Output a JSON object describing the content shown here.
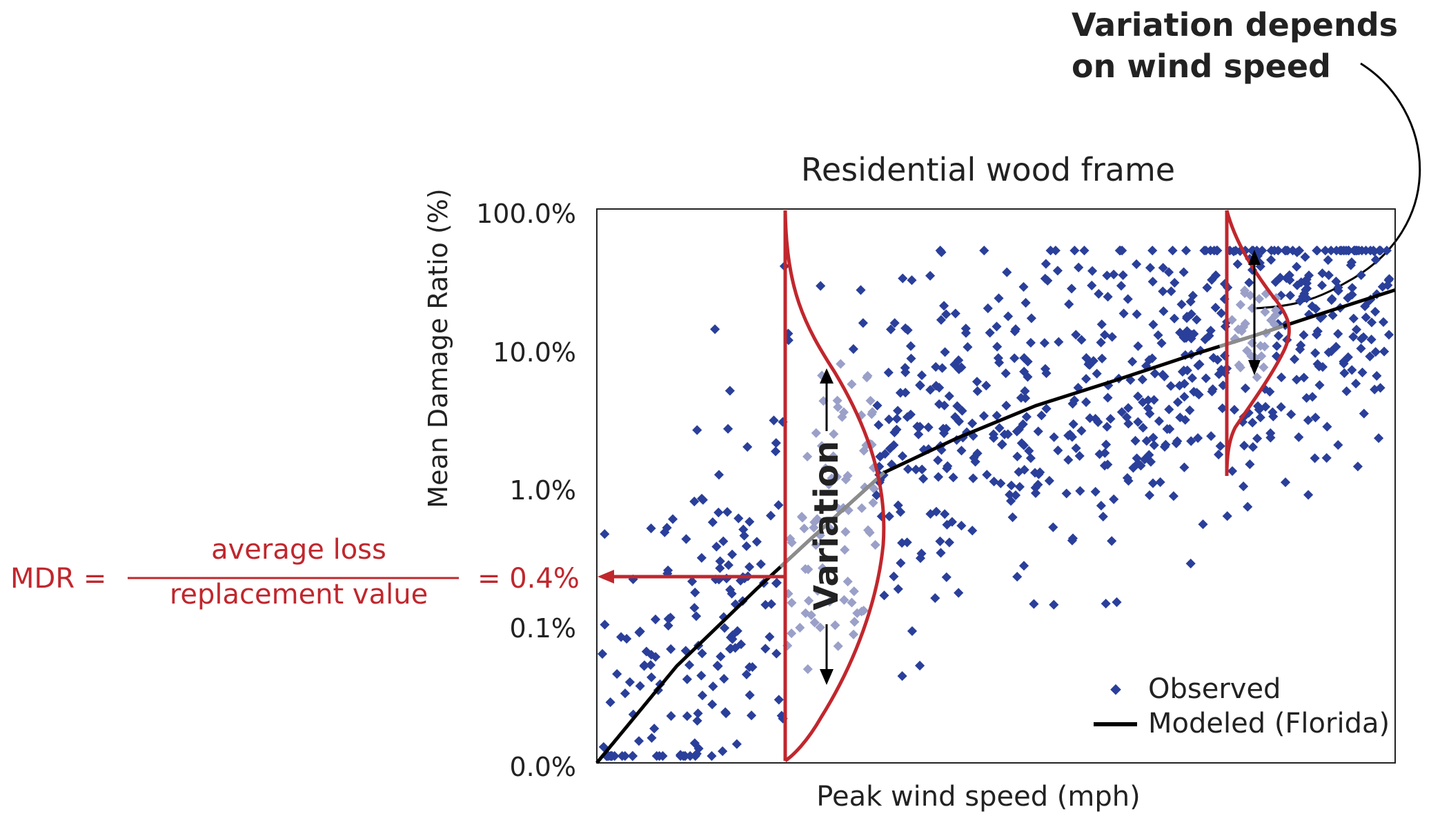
{
  "chart_data": {
    "type": "scatter",
    "title": "Residential wood frame",
    "xlabel": "Peak wind speed (mph)",
    "ylabel": "Mean Damage Ratio (%)",
    "y_scale": "log",
    "y_ticks": [
      "100.0%",
      "10.0%",
      "1.0%",
      "0.1%",
      "0.0%"
    ],
    "x_ticks": [],
    "grid": false,
    "legend_position": "bottom-right",
    "legend": {
      "observed": "Observed",
      "modeled": "Modeled (Florida)"
    },
    "colors": {
      "observed": "#2a3f9a",
      "modeled": "#000000",
      "distribution": "#c0272d",
      "highlight": "#9aa0c8"
    },
    "modeled_curve": {
      "name": "Modeled (Florida)",
      "x": [
        0.0,
        0.1,
        0.2,
        0.265,
        0.36,
        0.45,
        0.55,
        0.65,
        0.75,
        0.82,
        0.9,
        1.0
      ],
      "y": [
        0.01,
        0.05,
        0.18,
        0.4,
        1.25,
        2.2,
        3.8,
        5.8,
        9.0,
        12.0,
        17.0,
        26.0
      ]
    },
    "annotations": {
      "variation_label": "Variation",
      "callout": "Variation depends on wind speed",
      "callout_line1": "Variation depends",
      "callout_line2": "on wind speed",
      "mdr_label": "MDR =",
      "mdr_numerator": "average loss",
      "mdr_denominator": "replacement value",
      "mdr_value": "= 0.4%"
    }
  }
}
